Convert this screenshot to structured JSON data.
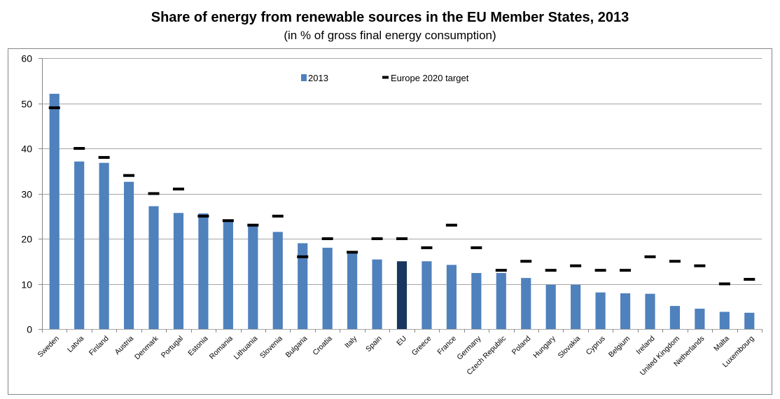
{
  "title": "Share of energy from renewable sources in the EU Member States, 2013",
  "subtitle": "(in % of gross final energy consumption)",
  "colors": {
    "bar": "#4f81bd",
    "bar_highlight": "#17375e",
    "target": "#000000",
    "grid": "#a6a6a6",
    "frame": "#868686"
  },
  "chart_data": {
    "type": "bar",
    "title": "Share of energy from renewable sources in the EU Member States, 2013",
    "subtitle": "(in % of gross final energy consumption)",
    "xlabel": "",
    "ylabel": "",
    "ylim": [
      0,
      60
    ],
    "yticks": [
      0,
      10,
      20,
      30,
      40,
      50,
      60
    ],
    "grid": true,
    "legend_position": "top-center",
    "highlight_category": "EU",
    "categories": [
      "Sweden",
      "Latvia",
      "Finland",
      "Austria",
      "Denmark",
      "Portugal",
      "Estonia",
      "Romania",
      "Lithuania",
      "Slovenia",
      "Bulgaria",
      "Croatia",
      "Italy",
      "Spain",
      "EU",
      "Greece",
      "France",
      "Germany",
      "Czech Republic",
      "Poland",
      "Hungary",
      "Slovakia",
      "Cyprus",
      "Belgium",
      "Ireland",
      "United Kingdom",
      "Netherlands",
      "Malta",
      "Luxembourg"
    ],
    "series": [
      {
        "name": "2013",
        "kind": "bar",
        "values": [
          52.1,
          37.1,
          36.8,
          32.6,
          27.2,
          25.7,
          25.6,
          23.9,
          23.0,
          21.5,
          19.0,
          18.0,
          16.7,
          15.4,
          15.0,
          15.0,
          14.2,
          12.4,
          12.4,
          11.3,
          9.8,
          9.8,
          8.1,
          7.9,
          7.8,
          5.1,
          4.5,
          3.8,
          3.6
        ]
      },
      {
        "name": "Europe 2020 target",
        "kind": "marker",
        "values": [
          49,
          40,
          38,
          34,
          30,
          31,
          25,
          24,
          23,
          25,
          16,
          20,
          17,
          20,
          20,
          18,
          23,
          18,
          13,
          15,
          13,
          14,
          13,
          13,
          16,
          15,
          14,
          10,
          11
        ]
      }
    ]
  }
}
